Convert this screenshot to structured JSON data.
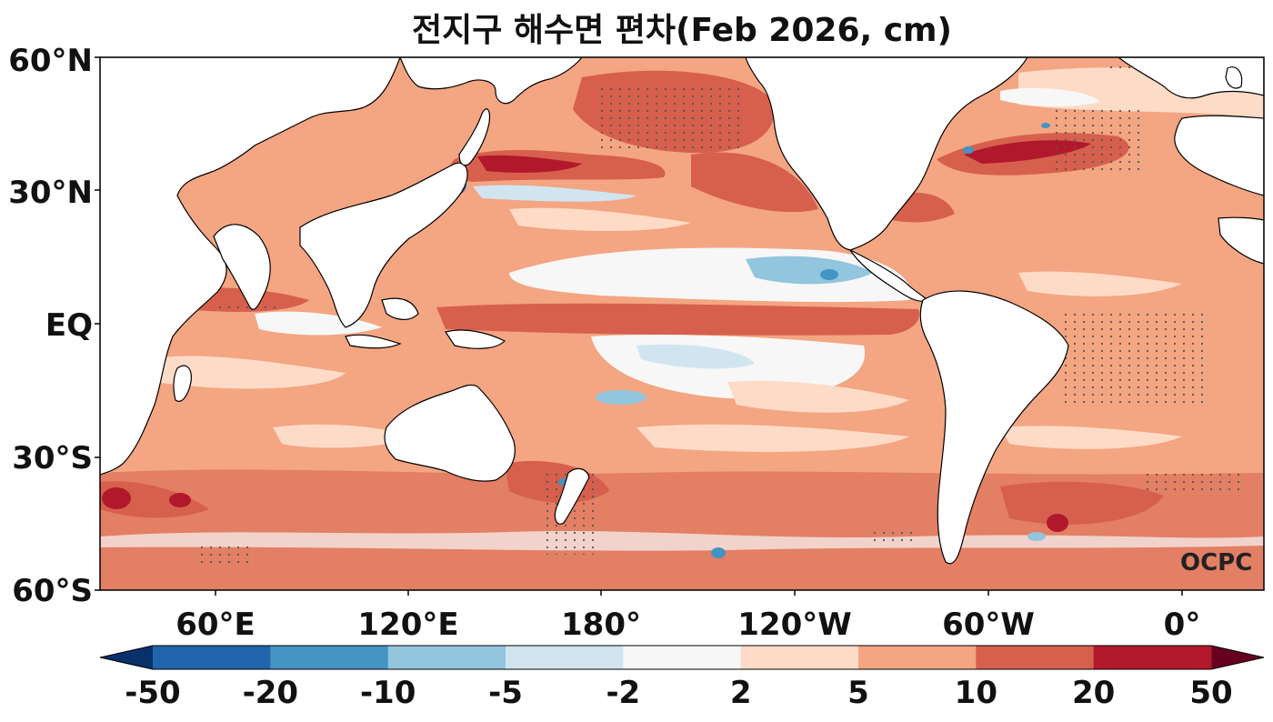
{
  "title": "전지구 해수면 편차(Feb 2026, cm)",
  "credit": "OCPC",
  "lat_labels": [
    "60°N",
    "30°N",
    "EQ",
    "30°S",
    "60°S"
  ],
  "lon_labels": [
    "60°E",
    "120°E",
    "180°",
    "120°W",
    "60°W",
    "0°"
  ],
  "colorbar": {
    "labels": [
      "-50",
      "-20",
      "-10",
      "-5",
      "-2",
      "2",
      "5",
      "10",
      "20",
      "50"
    ],
    "colors": [
      "#08306b",
      "#2166ac",
      "#4393c3",
      "#92c5de",
      "#d1e5f0",
      "#f7f7f7",
      "#fddbc7",
      "#f4a582",
      "#d6604d",
      "#b2182b",
      "#67001f"
    ]
  },
  "map": {
    "ocean_base_color": "#f4a582",
    "land_color": "#ffffff",
    "coast_color": "#000000"
  }
}
